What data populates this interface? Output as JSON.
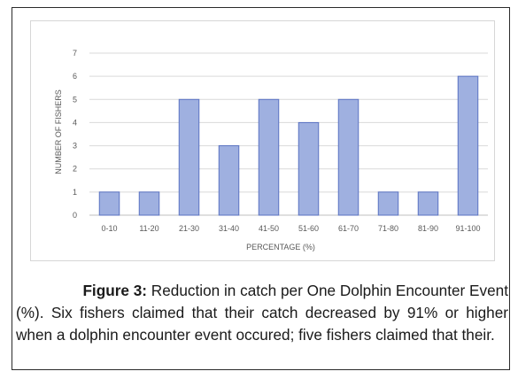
{
  "chart_data": {
    "type": "bar",
    "categories": [
      "0-10",
      "11-20",
      "21-30",
      "31-40",
      "41-50",
      "51-60",
      "61-70",
      "71-80",
      "81-90",
      "91-100"
    ],
    "values": [
      1,
      1,
      5,
      3,
      5,
      4,
      5,
      1,
      1,
      6
    ],
    "yticks": [
      "0",
      "1",
      "2",
      "3",
      "4",
      "5",
      "6",
      "7"
    ],
    "xlabel": "PERCENTAGE (%)",
    "ylabel": "NUMBER OF FISHERS",
    "ylim": [
      0,
      7
    ],
    "grid": true,
    "bar_color": "#9fb0e0",
    "bar_edge_color": "#5a72c2"
  },
  "caption": {
    "label": "Figure 3:",
    "first_line": "Reduction in catch per One Dolphin Encounter Event",
    "text": "(%). Six fishers claimed that their catch decreased by 91% or higher when a dolphin encounter event occured; five fishers claimed that their."
  }
}
